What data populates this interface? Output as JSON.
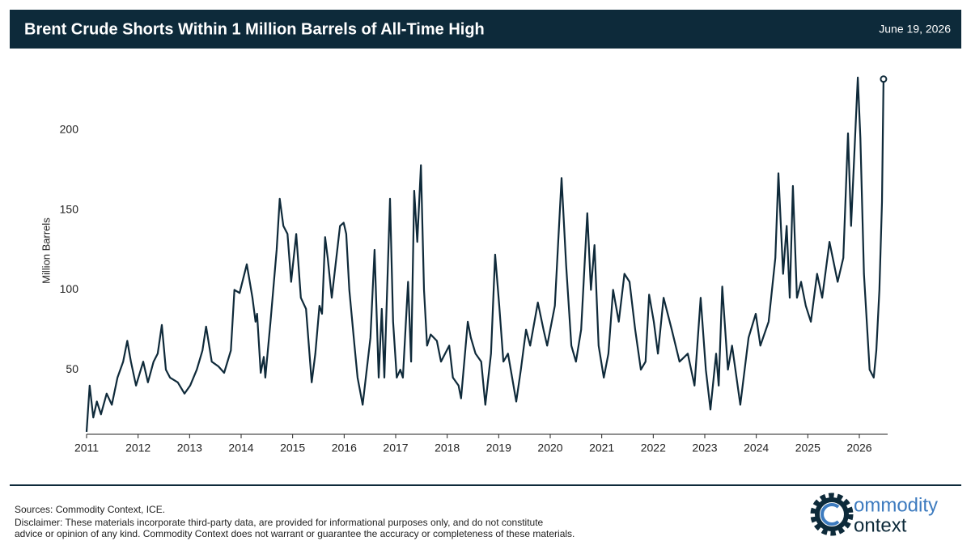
{
  "header": {
    "title": "Brent Crude Shorts Within 1 Million Barrels of All-Time High",
    "date": "June 19, 2026"
  },
  "chart_data": {
    "type": "line",
    "y_label": "Million Barrels",
    "xlim": [
      2011,
      2026.55
    ],
    "xticks": [
      2011,
      2012,
      2013,
      2014,
      2015,
      2016,
      2017,
      2018,
      2019,
      2020,
      2021,
      2022,
      2023,
      2024,
      2025,
      2026
    ],
    "ylim": [
      9.5,
      240
    ],
    "yticks": [
      50,
      100,
      150,
      200
    ],
    "grid": false,
    "last_point_marker": true,
    "series": [
      {
        "color": "#0f2a3a",
        "x": [
          2011.0,
          2011.06,
          2011.13,
          2011.2,
          2011.28,
          2011.39,
          2011.49,
          2011.6,
          2011.71,
          2011.79,
          2011.86,
          2011.96,
          2012.1,
          2012.19,
          2012.3,
          2012.38,
          2012.46,
          2012.54,
          2012.62,
          2012.77,
          2012.9,
          2013.01,
          2013.14,
          2013.25,
          2013.32,
          2013.43,
          2013.56,
          2013.67,
          2013.8,
          2013.87,
          2013.97,
          2014.11,
          2014.22,
          2014.28,
          2014.31,
          2014.38,
          2014.44,
          2014.47,
          2014.57,
          2014.69,
          2014.75,
          2014.82,
          2014.9,
          2014.97,
          2015.07,
          2015.16,
          2015.26,
          2015.37,
          2015.44,
          2015.52,
          2015.57,
          2015.63,
          2015.68,
          2015.76,
          2015.92,
          2015.99,
          2016.04,
          2016.1,
          2016.2,
          2016.26,
          2016.36,
          2016.42,
          2016.51,
          2016.59,
          2016.67,
          2016.73,
          2016.78,
          2016.89,
          2016.95,
          2017.02,
          2017.09,
          2017.14,
          2017.24,
          2017.3,
          2017.36,
          2017.42,
          2017.49,
          2017.55,
          2017.61,
          2017.68,
          2017.8,
          2017.88,
          2017.96,
          2018.04,
          2018.11,
          2018.22,
          2018.27,
          2018.4,
          2018.46,
          2018.55,
          2018.66,
          2018.74,
          2018.85,
          2018.93,
          2019.01,
          2019.09,
          2019.18,
          2019.34,
          2019.43,
          2019.53,
          2019.61,
          2019.76,
          2019.87,
          2019.94,
          2020.09,
          2020.22,
          2020.31,
          2020.41,
          2020.5,
          2020.6,
          2020.72,
          2020.79,
          2020.86,
          2020.94,
          2021.04,
          2021.13,
          2021.22,
          2021.33,
          2021.44,
          2021.54,
          2021.65,
          2021.76,
          2021.85,
          2021.92,
          2022.01,
          2022.09,
          2022.2,
          2022.36,
          2022.51,
          2022.67,
          2022.8,
          2022.92,
          2023.02,
          2023.11,
          2023.22,
          2023.27,
          2023.34,
          2023.45,
          2023.53,
          2023.69,
          2023.85,
          2023.99,
          2024.08,
          2024.24,
          2024.37,
          2024.43,
          2024.52,
          2024.59,
          2024.65,
          2024.71,
          2024.79,
          2024.87,
          2024.96,
          2025.06,
          2025.18,
          2025.28,
          2025.42,
          2025.58,
          2025.69,
          2025.78,
          2025.84,
          2025.97,
          2026.02,
          2026.09,
          2026.2,
          2026.28,
          2026.33,
          2026.39,
          2026.44,
          2026.47
        ],
        "values": [
          11,
          40,
          20,
          30,
          22,
          35,
          28,
          45,
          55,
          68,
          55,
          40,
          55,
          42,
          55,
          60,
          78,
          50,
          45,
          42,
          35,
          40,
          50,
          62,
          77,
          55,
          52,
          48,
          62,
          100,
          98,
          116,
          95,
          80,
          85,
          48,
          58,
          45,
          80,
          125,
          157,
          140,
          135,
          105,
          135,
          95,
          88,
          42,
          60,
          90,
          85,
          133,
          120,
          95,
          140,
          142,
          135,
          100,
          65,
          45,
          28,
          45,
          70,
          125,
          45,
          88,
          45,
          157,
          80,
          45,
          50,
          45,
          105,
          55,
          162,
          130,
          178,
          100,
          65,
          72,
          68,
          55,
          60,
          65,
          45,
          40,
          32,
          80,
          70,
          60,
          55,
          28,
          60,
          122,
          90,
          55,
          60,
          30,
          50,
          75,
          65,
          92,
          75,
          65,
          90,
          170,
          115,
          65,
          55,
          75,
          148,
          100,
          128,
          65,
          45,
          60,
          100,
          80,
          110,
          105,
          75,
          50,
          55,
          97,
          80,
          60,
          95,
          75,
          55,
          60,
          40,
          95,
          50,
          25,
          60,
          40,
          102,
          50,
          65,
          28,
          70,
          85,
          65,
          80,
          120,
          173,
          110,
          140,
          95,
          165,
          95,
          105,
          90,
          80,
          110,
          95,
          130,
          105,
          120,
          198,
          140,
          233,
          195,
          110,
          50,
          45,
          62,
          100,
          155,
          232
        ]
      }
    ]
  },
  "footer": {
    "sources": "Sources: Commodity Context, ICE.",
    "disclaimer": [
      "Disclaimer: These materials incorporate third-party data, are provided for informational purposes only, and do not constitute",
      "advice or opinion of any kind. Commodity Context does not warrant or guarantee the accuracy or completeness of these materials."
    ],
    "logo": [
      "ommodity",
      "ontext"
    ]
  }
}
